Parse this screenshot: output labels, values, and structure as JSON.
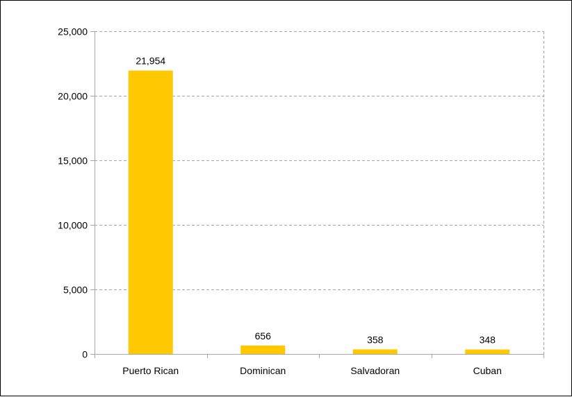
{
  "chart_data": {
    "type": "bar",
    "categories": [
      "Puerto Rican",
      "Dominican",
      "Salvadoran",
      "Cuban"
    ],
    "values": [
      21954,
      656,
      358,
      348
    ],
    "data_labels": [
      "21,954",
      "656",
      "358",
      "348"
    ],
    "ylim": [
      0,
      25000
    ],
    "yticks": [
      0,
      5000,
      10000,
      15000,
      20000,
      25000
    ],
    "ytick_labels": [
      "0",
      "5,000",
      "10,000",
      "15,000",
      "20,000",
      "25,000"
    ],
    "title": "",
    "xlabel": "",
    "ylabel": "",
    "grid": true,
    "legend": "none",
    "bar_color": "#FFC800",
    "grid_color": "#A6A6A6",
    "axis_color": "#A6A6A6"
  }
}
